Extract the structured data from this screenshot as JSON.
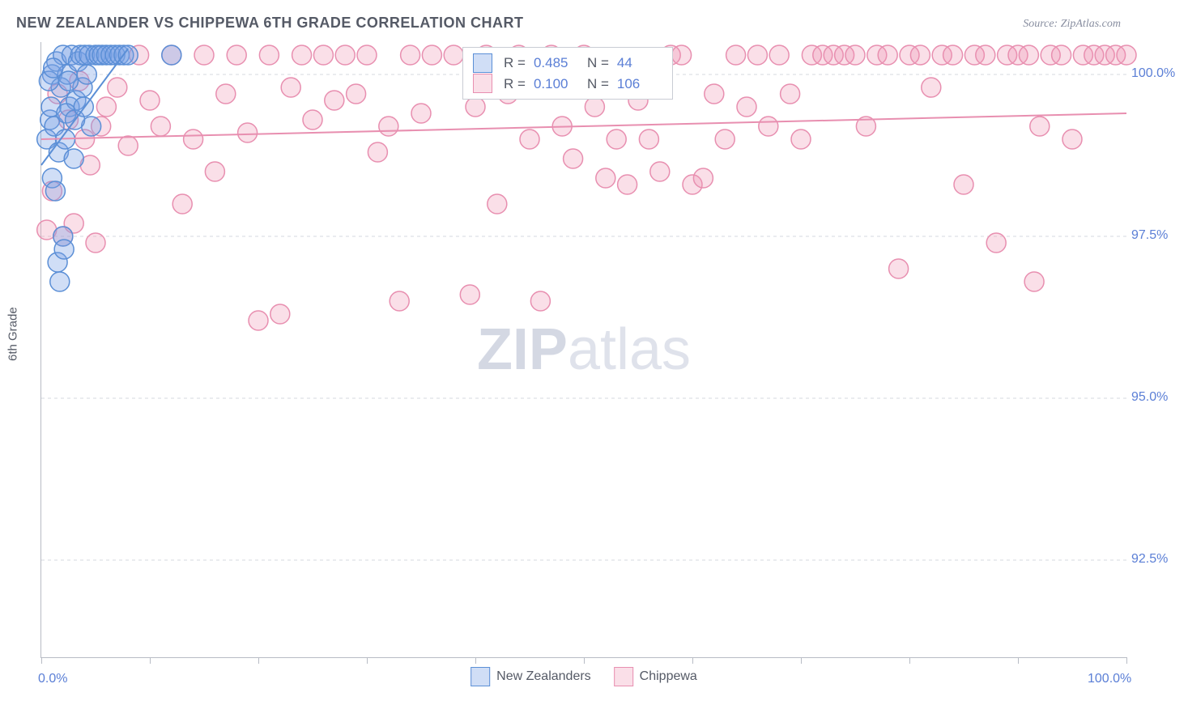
{
  "title": "NEW ZEALANDER VS CHIPPEWA 6TH GRADE CORRELATION CHART",
  "source_label": "Source: ZipAtlas.com",
  "y_axis_label": "6th Grade",
  "watermark_bold": "ZIP",
  "watermark_rest": "atlas",
  "colors": {
    "axis": "#b8bcc5",
    "grid": "#d5d8df",
    "tick_text": "#5b7fd6",
    "title_text": "#555a66",
    "series_a_fill": "rgba(120,160,230,0.35)",
    "series_a_stroke": "#5b8fd6",
    "series_b_fill": "rgba(240,150,180,0.30)",
    "series_b_stroke": "#e88fb0",
    "background": "#ffffff"
  },
  "chart": {
    "type": "scatter",
    "xlim": [
      0,
      100
    ],
    "ylim": [
      91.0,
      100.5
    ],
    "xtick_positions": [
      0,
      10,
      20,
      30,
      40,
      50,
      60,
      70,
      80,
      90,
      100
    ],
    "xtick_labels": {
      "0": "0.0%",
      "100": "100.0%"
    },
    "ytick_positions": [
      92.5,
      95.0,
      97.5,
      100.0
    ],
    "ytick_labels": {
      "92.5": "92.5%",
      "95.0": "95.0%",
      "97.5": "97.5%",
      "100.0": "100.0%"
    },
    "marker_radius": 12,
    "marker_stroke_width": 1.5,
    "line_width": 2
  },
  "series_a": {
    "name": "New Zealanders",
    "R_label": "R =",
    "R_value": "0.485",
    "N_label": "N =",
    "N_value": "44",
    "regression": {
      "x1": 0,
      "y1": 98.6,
      "x2": 8,
      "y2": 100.4
    },
    "points": [
      [
        0.5,
        99.0
      ],
      [
        0.8,
        99.3
      ],
      [
        1.0,
        100.0
      ],
      [
        1.2,
        99.2
      ],
      [
        1.4,
        100.2
      ],
      [
        1.6,
        98.8
      ],
      [
        1.8,
        99.8
      ],
      [
        2.0,
        100.3
      ],
      [
        2.2,
        99.0
      ],
      [
        2.4,
        100.0
      ],
      [
        2.6,
        99.5
      ],
      [
        2.8,
        100.3
      ],
      [
        3.0,
        98.7
      ],
      [
        3.2,
        99.6
      ],
      [
        3.4,
        100.2
      ],
      [
        3.6,
        100.3
      ],
      [
        3.8,
        99.8
      ],
      [
        4.0,
        100.3
      ],
      [
        4.2,
        100.0
      ],
      [
        4.4,
        100.3
      ],
      [
        4.6,
        99.2
      ],
      [
        5.0,
        100.3
      ],
      [
        5.3,
        100.3
      ],
      [
        5.6,
        100.3
      ],
      [
        6.0,
        100.3
      ],
      [
        6.4,
        100.3
      ],
      [
        6.8,
        100.3
      ],
      [
        7.2,
        100.3
      ],
      [
        7.6,
        100.3
      ],
      [
        8.0,
        100.3
      ],
      [
        1.0,
        98.4
      ],
      [
        1.3,
        98.2
      ],
      [
        1.5,
        97.1
      ],
      [
        1.7,
        96.8
      ],
      [
        2.0,
        97.5
      ],
      [
        2.1,
        97.3
      ],
      [
        0.7,
        99.9
      ],
      [
        0.9,
        99.5
      ],
      [
        1.1,
        100.1
      ],
      [
        2.3,
        99.4
      ],
      [
        2.5,
        99.9
      ],
      [
        3.1,
        99.3
      ],
      [
        3.9,
        99.5
      ],
      [
        12.0,
        100.3
      ]
    ]
  },
  "series_b": {
    "name": "Chippewa",
    "R_label": "R =",
    "R_value": "0.100",
    "N_label": "N =",
    "N_value": "106",
    "regression": {
      "x1": 0,
      "y1": 99.0,
      "x2": 100,
      "y2": 99.4
    },
    "points": [
      [
        0.5,
        97.6
      ],
      [
        1.0,
        98.2
      ],
      [
        1.5,
        99.7
      ],
      [
        2.0,
        97.5
      ],
      [
        3.0,
        97.7
      ],
      [
        4.0,
        99.0
      ],
      [
        5.0,
        97.4
      ],
      [
        6.0,
        99.5
      ],
      [
        7.0,
        99.8
      ],
      [
        8.0,
        98.9
      ],
      [
        9.0,
        100.3
      ],
      [
        10.0,
        99.6
      ],
      [
        11.0,
        99.2
      ],
      [
        12.0,
        100.3
      ],
      [
        13.0,
        98.0
      ],
      [
        14.0,
        99.0
      ],
      [
        15.0,
        100.3
      ],
      [
        16.0,
        98.5
      ],
      [
        17.0,
        99.7
      ],
      [
        18.0,
        100.3
      ],
      [
        19.0,
        99.1
      ],
      [
        20.0,
        96.2
      ],
      [
        21.0,
        100.3
      ],
      [
        22.0,
        96.3
      ],
      [
        23.0,
        99.8
      ],
      [
        24.0,
        100.3
      ],
      [
        25.0,
        99.3
      ],
      [
        26.0,
        100.3
      ],
      [
        27.0,
        99.6
      ],
      [
        28.0,
        100.3
      ],
      [
        29.0,
        99.7
      ],
      [
        30.0,
        100.3
      ],
      [
        31.0,
        98.8
      ],
      [
        32.0,
        99.2
      ],
      [
        33.0,
        96.5
      ],
      [
        34.0,
        100.3
      ],
      [
        35.0,
        99.4
      ],
      [
        36.0,
        100.3
      ],
      [
        38.0,
        100.3
      ],
      [
        39.5,
        96.6
      ],
      [
        40.0,
        99.5
      ],
      [
        41.0,
        100.3
      ],
      [
        42.0,
        98.0
      ],
      [
        43.0,
        99.7
      ],
      [
        44.0,
        100.3
      ],
      [
        45.0,
        99.0
      ],
      [
        46.0,
        96.5
      ],
      [
        47.0,
        100.3
      ],
      [
        48.0,
        99.2
      ],
      [
        49.0,
        98.7
      ],
      [
        50.0,
        100.3
      ],
      [
        51.0,
        99.5
      ],
      [
        52.0,
        98.4
      ],
      [
        53.0,
        99.0
      ],
      [
        54.0,
        98.3
      ],
      [
        55.0,
        99.6
      ],
      [
        56.0,
        99.0
      ],
      [
        57.0,
        98.5
      ],
      [
        58.0,
        100.3
      ],
      [
        59.0,
        100.3
      ],
      [
        60.0,
        98.3
      ],
      [
        61.0,
        98.4
      ],
      [
        62.0,
        99.7
      ],
      [
        63.0,
        99.0
      ],
      [
        64.0,
        100.3
      ],
      [
        65.0,
        99.5
      ],
      [
        66.0,
        100.3
      ],
      [
        67.0,
        99.2
      ],
      [
        68.0,
        100.3
      ],
      [
        69.0,
        99.7
      ],
      [
        70.0,
        99.0
      ],
      [
        71.0,
        100.3
      ],
      [
        72.0,
        100.3
      ],
      [
        73.0,
        100.3
      ],
      [
        74.0,
        100.3
      ],
      [
        75.0,
        100.3
      ],
      [
        76.0,
        99.2
      ],
      [
        77.0,
        100.3
      ],
      [
        78.0,
        100.3
      ],
      [
        79.0,
        97.0
      ],
      [
        80.0,
        100.3
      ],
      [
        81.0,
        100.3
      ],
      [
        82.0,
        99.8
      ],
      [
        83.0,
        100.3
      ],
      [
        84.0,
        100.3
      ],
      [
        85.0,
        98.3
      ],
      [
        86.0,
        100.3
      ],
      [
        87.0,
        100.3
      ],
      [
        88.0,
        97.4
      ],
      [
        89.0,
        100.3
      ],
      [
        90.0,
        100.3
      ],
      [
        91.0,
        100.3
      ],
      [
        91.5,
        96.8
      ],
      [
        92.0,
        99.2
      ],
      [
        93.0,
        100.3
      ],
      [
        94.0,
        100.3
      ],
      [
        95.0,
        99.0
      ],
      [
        96.0,
        100.3
      ],
      [
        97.0,
        100.3
      ],
      [
        98.0,
        100.3
      ],
      [
        99.0,
        100.3
      ],
      [
        100.0,
        100.3
      ],
      [
        2.5,
        99.3
      ],
      [
        3.5,
        99.9
      ],
      [
        4.5,
        98.6
      ],
      [
        5.5,
        99.2
      ]
    ]
  },
  "bottom_legend": {
    "items": [
      "New Zealanders",
      "Chippewa"
    ]
  }
}
